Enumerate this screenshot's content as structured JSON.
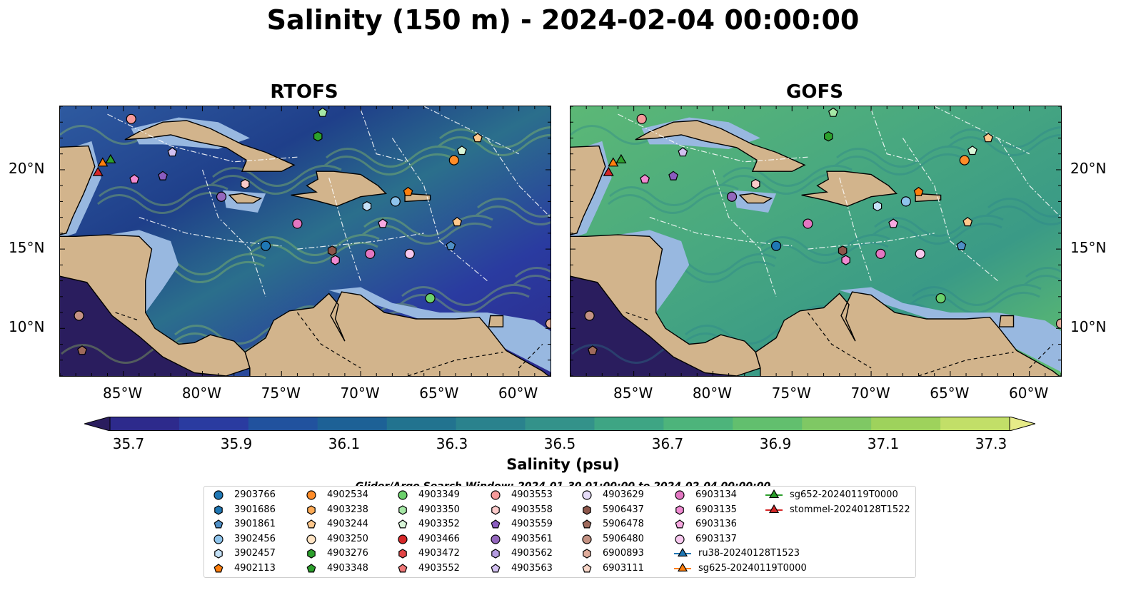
{
  "title": "Salinity (150 m) - 2024-02-04 00:00:00",
  "panels": [
    {
      "id": "rtofs",
      "title": "RTOFS"
    },
    {
      "id": "gofs",
      "title": "GOFS"
    }
  ],
  "map_extent": {
    "lon": [
      -89,
      -58
    ],
    "lat": [
      7,
      24
    ]
  },
  "lon_ticks": [
    "85°W",
    "80°W",
    "75°W",
    "70°W",
    "65°W",
    "60°W"
  ],
  "lon_tick_values": [
    -85,
    -80,
    -75,
    -70,
    -65,
    -60
  ],
  "lat_ticks": [
    "20°N",
    "15°N",
    "10°N"
  ],
  "lat_tick_values": [
    20,
    15,
    10
  ],
  "colorbar": {
    "label": "Salinity (psu)",
    "ticks": [
      "35.7",
      "35.9",
      "36.1",
      "36.3",
      "36.5",
      "36.7",
      "36.9",
      "37.1",
      "37.3"
    ],
    "colors": [
      "#2a1d5e",
      "#2d2a8c",
      "#2a3ba0",
      "#21529e",
      "#1d6196",
      "#22738f",
      "#2a828d",
      "#33928a",
      "#3ea584",
      "#4db47b",
      "#62bf6e",
      "#7fc864",
      "#9ed25c",
      "#c2df68",
      "#e6eb88"
    ]
  },
  "search_window": "Glider/Argo Search Window: 2024-01-30 01:00:00 to 2024-02-04 00:00:00",
  "colors": {
    "land": "#d2b48c",
    "shelf": "#98b8e0",
    "ocean_rtofs": "#2a5a94",
    "ocean_gofs": "#4fae7a"
  },
  "legend": [
    {
      "label": "2903766",
      "marker": "circle",
      "color": "#1f77b4"
    },
    {
      "label": "3901686",
      "marker": "hexagon",
      "color": "#1f77b4"
    },
    {
      "label": "3901861",
      "marker": "pentagon",
      "color": "#4f8fc6"
    },
    {
      "label": "3902456",
      "marker": "circle",
      "color": "#8ec4ec"
    },
    {
      "label": "3902457",
      "marker": "hexagon",
      "color": "#c4e1f7"
    },
    {
      "label": "4902113",
      "marker": "pentagon",
      "color": "#ff7f0e"
    },
    {
      "label": "4902534",
      "marker": "circle",
      "color": "#ff8c28"
    },
    {
      "label": "4903238",
      "marker": "hexagon",
      "color": "#ffab55"
    },
    {
      "label": "4903244",
      "marker": "pentagon",
      "color": "#ffc88c"
    },
    {
      "label": "4903250",
      "marker": "circle",
      "color": "#ffe3c3"
    },
    {
      "label": "4903276",
      "marker": "hexagon",
      "color": "#2ca02c"
    },
    {
      "label": "4903348",
      "marker": "pentagon",
      "color": "#2ca02c"
    },
    {
      "label": "4903349",
      "marker": "circle",
      "color": "#6bd16b"
    },
    {
      "label": "4903350",
      "marker": "hexagon",
      "color": "#a6e8a6"
    },
    {
      "label": "4903352",
      "marker": "pentagon",
      "color": "#d8f6d8"
    },
    {
      "label": "4903466",
      "marker": "circle",
      "color": "#d62728"
    },
    {
      "label": "4903472",
      "marker": "hexagon",
      "color": "#e34546"
    },
    {
      "label": "4903552",
      "marker": "pentagon",
      "color": "#f07878"
    },
    {
      "label": "4903553",
      "marker": "circle",
      "color": "#f59a9a"
    },
    {
      "label": "4903558",
      "marker": "hexagon",
      "color": "#fbcaca"
    },
    {
      "label": "4903559",
      "marker": "pentagon",
      "color": "#8a5cbf"
    },
    {
      "label": "4903561",
      "marker": "circle",
      "color": "#9467bd"
    },
    {
      "label": "4903562",
      "marker": "hexagon",
      "color": "#b49be0"
    },
    {
      "label": "4903563",
      "marker": "pentagon",
      "color": "#d2c0f0"
    },
    {
      "label": "4903629",
      "marker": "circle",
      "color": "#e6dcf8"
    },
    {
      "label": "5906437",
      "marker": "hexagon",
      "color": "#8c564b"
    },
    {
      "label": "5906478",
      "marker": "pentagon",
      "color": "#9f6a5c"
    },
    {
      "label": "5906480",
      "marker": "circle",
      "color": "#c49283"
    },
    {
      "label": "6900893",
      "marker": "hexagon",
      "color": "#e0ac9b"
    },
    {
      "label": "6903111",
      "marker": "pentagon",
      "color": "#f8d6c8"
    },
    {
      "label": "6903134",
      "marker": "circle",
      "color": "#e377c2"
    },
    {
      "label": "6903135",
      "marker": "hexagon",
      "color": "#f08ad2"
    },
    {
      "label": "6903136",
      "marker": "pentagon",
      "color": "#f7a8e0"
    },
    {
      "label": "6903137",
      "marker": "circle",
      "color": "#f7c8ee"
    },
    {
      "label": "ru38-20240128T1523",
      "marker": "triangle",
      "color": "#1f77b4"
    },
    {
      "label": "sg625-20240119T0000",
      "marker": "triangle",
      "color": "#ff7f0e"
    },
    {
      "label": "sg652-20240119T0000",
      "marker": "triangle",
      "color": "#2ca02c"
    },
    {
      "label": "stommel-20240128T1522",
      "marker": "triangle",
      "color": "#d62728"
    }
  ],
  "observations": [
    {
      "lon": -86.3,
      "lat": 20.4,
      "marker": "triangle",
      "color": "#ff7f0e"
    },
    {
      "lon": -85.8,
      "lat": 20.6,
      "marker": "triangle",
      "color": "#2ca02c"
    },
    {
      "lon": -86.6,
      "lat": 19.8,
      "marker": "triangle",
      "color": "#d62728"
    },
    {
      "lon": -84.5,
      "lat": 23.2,
      "marker": "circle",
      "color": "#f59a9a"
    },
    {
      "lon": -72.7,
      "lat": 22.1,
      "marker": "hexagon",
      "color": "#2ca02c"
    },
    {
      "lon": -72.4,
      "lat": 23.6,
      "marker": "pentagon",
      "color": "#a6e8a6"
    },
    {
      "lon": -62.6,
      "lat": 22.0,
      "marker": "pentagon",
      "color": "#ffc88c"
    },
    {
      "lon": -63.6,
      "lat": 21.2,
      "marker": "pentagon",
      "color": "#d8f6d8"
    },
    {
      "lon": -64.1,
      "lat": 20.6,
      "marker": "circle",
      "color": "#ff8c28"
    },
    {
      "lon": -81.9,
      "lat": 21.1,
      "marker": "pentagon",
      "color": "#d2c0f0"
    },
    {
      "lon": -84.3,
      "lat": 19.4,
      "marker": "pentagon",
      "color": "#f08ad2"
    },
    {
      "lon": -82.5,
      "lat": 19.6,
      "marker": "pentagon",
      "color": "#8a5cbf"
    },
    {
      "lon": -78.8,
      "lat": 18.3,
      "marker": "circle",
      "color": "#9467bd"
    },
    {
      "lon": -77.3,
      "lat": 19.1,
      "marker": "hexagon",
      "color": "#fbcaca"
    },
    {
      "lon": -67.0,
      "lat": 18.6,
      "marker": "pentagon",
      "color": "#ff7f0e"
    },
    {
      "lon": -69.6,
      "lat": 17.7,
      "marker": "hexagon",
      "color": "#c4e1f7"
    },
    {
      "lon": -67.8,
      "lat": 18.0,
      "marker": "circle",
      "color": "#8ec4ec"
    },
    {
      "lon": -74.0,
      "lat": 16.6,
      "marker": "circle",
      "color": "#e377c2"
    },
    {
      "lon": -68.6,
      "lat": 16.6,
      "marker": "pentagon",
      "color": "#f7a8e0"
    },
    {
      "lon": -63.9,
      "lat": 16.7,
      "marker": "pentagon",
      "color": "#ffc88c"
    },
    {
      "lon": -76.0,
      "lat": 15.2,
      "marker": "circle",
      "color": "#1f77b4"
    },
    {
      "lon": -71.8,
      "lat": 14.9,
      "marker": "hexagon",
      "color": "#8c564b"
    },
    {
      "lon": -71.6,
      "lat": 14.3,
      "marker": "hexagon",
      "color": "#f08ad2"
    },
    {
      "lon": -69.4,
      "lat": 14.7,
      "marker": "circle",
      "color": "#e377c2"
    },
    {
      "lon": -66.9,
      "lat": 14.7,
      "marker": "circle",
      "color": "#f7c8ee"
    },
    {
      "lon": -64.3,
      "lat": 15.2,
      "marker": "pentagon",
      "color": "#4f8fc6"
    },
    {
      "lon": -65.6,
      "lat": 11.9,
      "marker": "circle",
      "color": "#6bd16b"
    },
    {
      "lon": -87.8,
      "lat": 10.8,
      "marker": "circle",
      "color": "#c49283"
    },
    {
      "lon": -87.6,
      "lat": 8.6,
      "marker": "pentagon",
      "color": "#9f6a5c"
    },
    {
      "lon": -58.0,
      "lat": 10.3,
      "marker": "circle",
      "color": "#e0ac9b"
    }
  ]
}
